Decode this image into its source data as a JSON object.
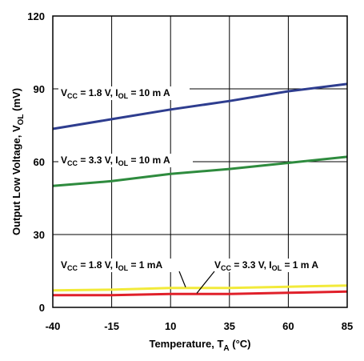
{
  "chart_data": {
    "type": "line",
    "title": "",
    "xlabel": {
      "main": "Temperature, T",
      "sub": "A",
      "tail": " (°C)"
    },
    "ylabel": {
      "main": "Output Low Voltage, V",
      "sub": "OL",
      "tail": " (mV)"
    },
    "xlim": [
      -40,
      85
    ],
    "ylim": [
      0,
      120
    ],
    "x_ticks": [
      -40,
      -15,
      10,
      35,
      60,
      85
    ],
    "x_tick_labels": [
      "-40",
      "-15",
      "10",
      "35",
      "60",
      "85"
    ],
    "y_ticks": [
      0,
      30,
      60,
      90,
      120
    ],
    "y_tick_labels": [
      "0",
      "30",
      "60",
      "90",
      "120"
    ],
    "grid": true,
    "legend": "none",
    "series": [
      {
        "color": "#2e3d8f",
        "x": [
          -40,
          -15,
          10,
          35,
          60,
          85
        ],
        "y": [
          73.5,
          77.5,
          81.5,
          85,
          89,
          92
        ]
      },
      {
        "color": "#2e8b3e",
        "x": [
          -40,
          -15,
          10,
          35,
          60,
          85
        ],
        "y": [
          50,
          52,
          55,
          57,
          59.5,
          62
        ]
      },
      {
        "color": "#f2ea3a",
        "x": [
          -40,
          -15,
          10,
          35,
          60,
          85
        ],
        "y": [
          7,
          7.3,
          8,
          8,
          8.5,
          9
        ]
      },
      {
        "color": "#e0202a",
        "x": [
          -40,
          -15,
          10,
          35,
          60,
          85
        ],
        "y": [
          5,
          5,
          5.5,
          5.5,
          6,
          6.5
        ]
      }
    ],
    "annotations": [
      {
        "parts": [
          "V",
          "CC",
          " = 1.8 V, I",
          "OL",
          " = 10 m A"
        ]
      },
      {
        "parts": [
          "V",
          "CC",
          " = 3.3 V, I",
          "OL",
          " = 10 m A"
        ]
      },
      {
        "parts": [
          "V",
          "CC",
          " = 1.8 V, I",
          "OL",
          " = 1 mA"
        ]
      },
      {
        "parts": [
          "V",
          "CC",
          " = 3.3 V, I",
          "OL",
          " = 1 m A"
        ]
      }
    ]
  }
}
